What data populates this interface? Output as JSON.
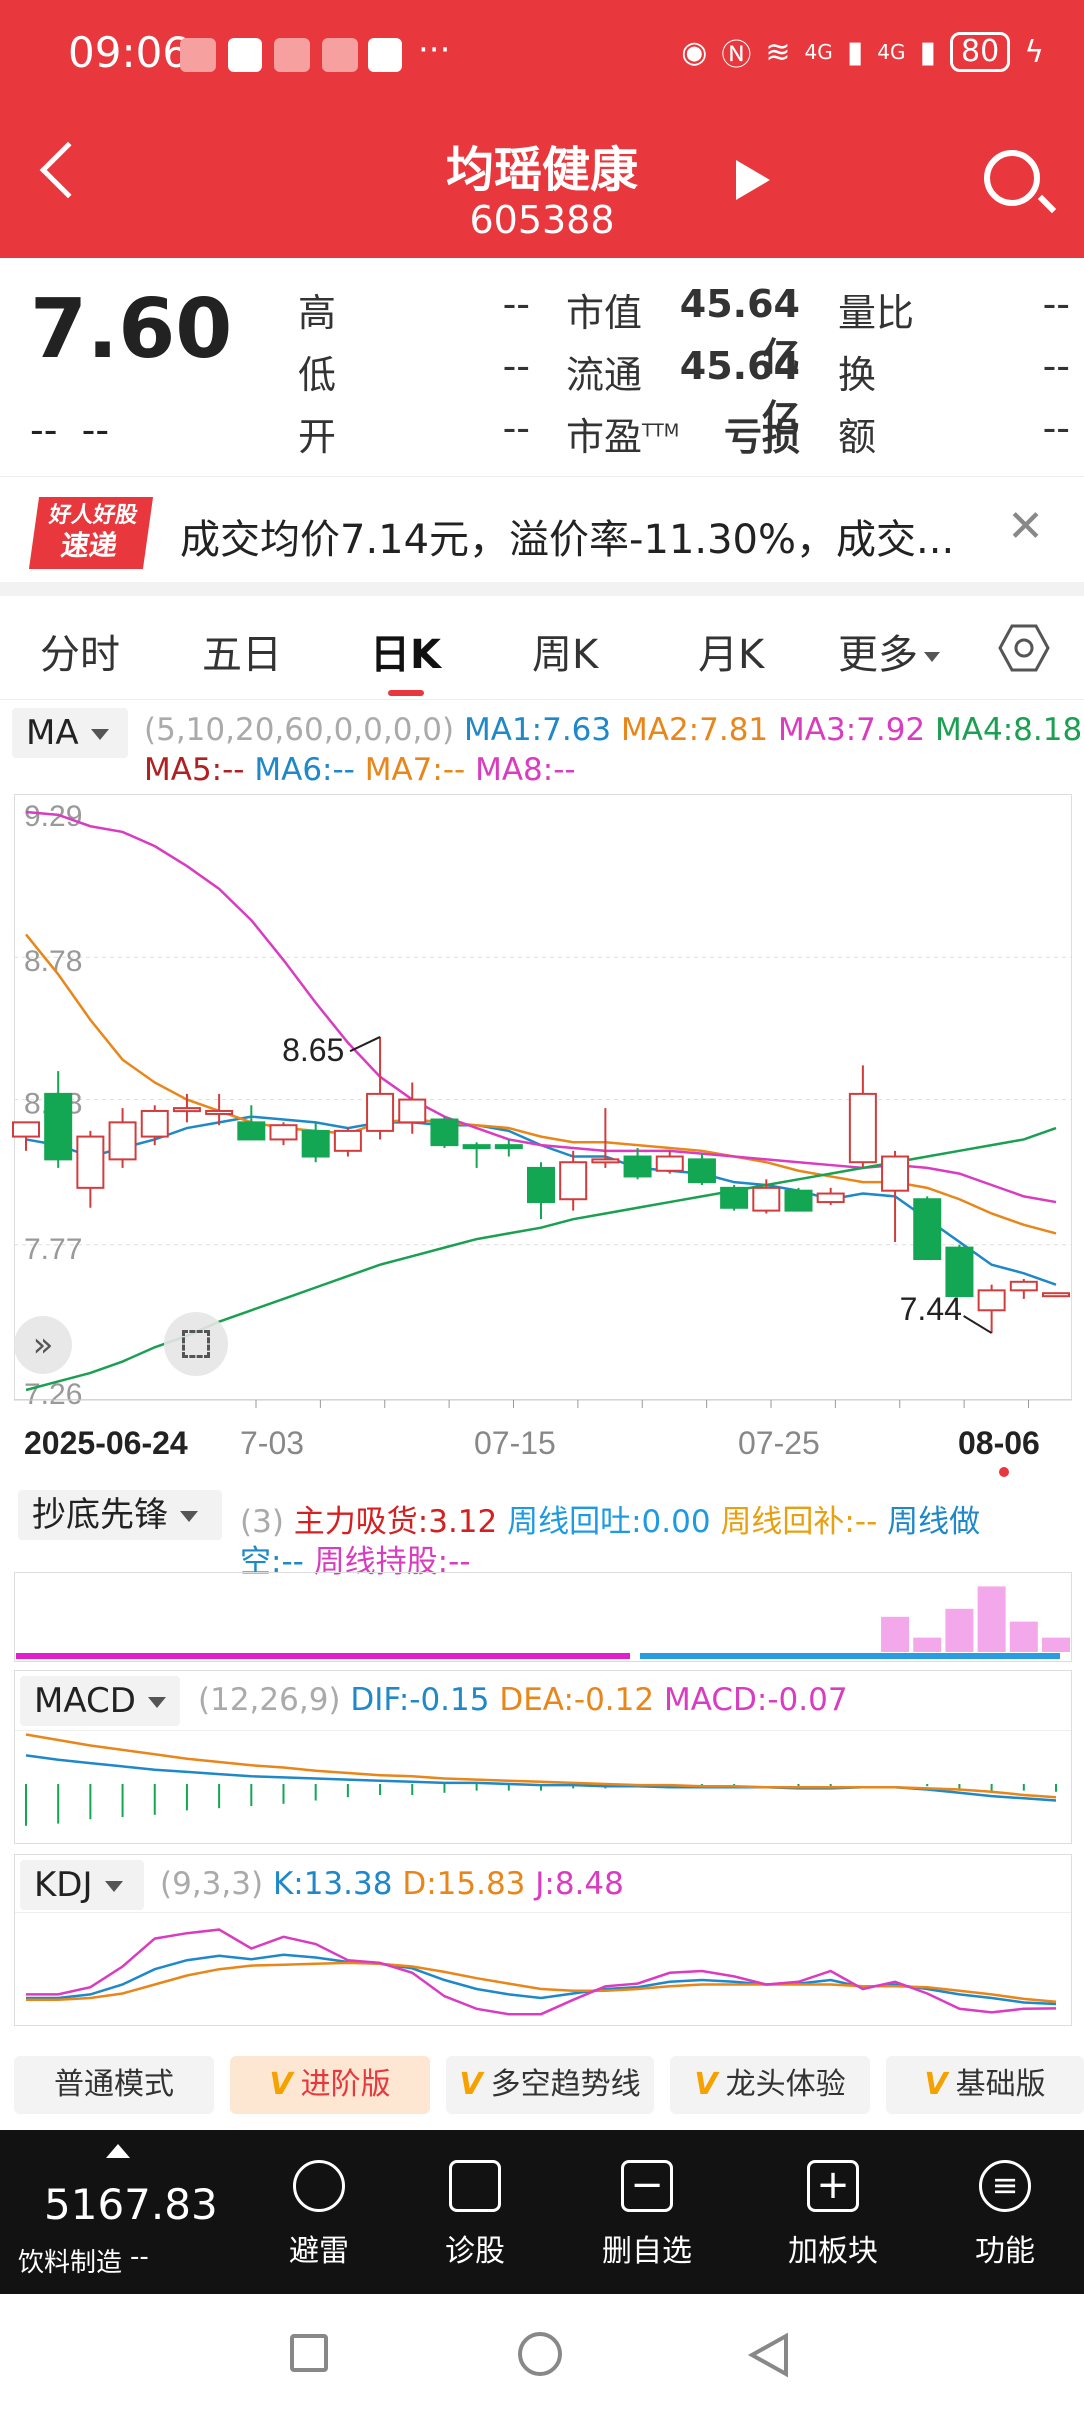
{
  "status": {
    "time": "09:06",
    "battery": "80",
    "signal1": "4G",
    "signal2": "4G"
  },
  "header": {
    "name": "均瑶健康",
    "code": "605388"
  },
  "quote": {
    "price": "7.60",
    "change": "--",
    "change_pct": "--",
    "high_label": "高",
    "high": "--",
    "low_label": "低",
    "low": "--",
    "open_label": "开",
    "open": "--",
    "mcap_label": "市值",
    "mcap": "45.64亿",
    "float_label": "流通",
    "float": "45.64亿",
    "pe_label": "市盈",
    "pe_sup": "TTM",
    "pe": "亏损",
    "vr_label": "量比",
    "vr": "--",
    "turn_label": "换",
    "turn": "--",
    "amt_label": "额",
    "amt": "--"
  },
  "news": {
    "logo_top": "好人好股",
    "logo_bottom": "速递",
    "text": "成交均价7.14元，溢价率-11.30%，成交..."
  },
  "tabs": [
    "分时",
    "五日",
    "日K",
    "周K",
    "月K",
    "更多"
  ],
  "ma": {
    "selector": "MA",
    "params": "(5,10,20,60,0,0,0,0)",
    "ma1": "MA1:7.63",
    "ma2": "MA2:7.81",
    "ma3": "MA3:7.92",
    "ma4": "MA4:8.18",
    "ma5": "MA5:--",
    "ma6": "MA6:--",
    "ma7": "MA7:--",
    "ma8": "MA8:--",
    "colors": {
      "ma1": "#1e88c8",
      "ma2": "#e8861a",
      "ma3": "#d93cc0",
      "ma4": "#1aa050",
      "ma5": "#b02020"
    }
  },
  "chart_data": [
    {
      "type": "candlestick",
      "title": "日K",
      "y_ticks": [
        "9.29",
        "8.78",
        "8.28",
        "7.77",
        "7.26"
      ],
      "ylim": [
        7.26,
        9.29
      ],
      "x_ticks": [
        "2025-06-24",
        "7-03",
        "07-15",
        "07-25",
        "08-06"
      ],
      "annotations": [
        "8.65",
        "7.44"
      ],
      "up_color": "#d23c3c",
      "down_color": "#13a653",
      "candles": [
        {
          "o": 8.15,
          "h": 8.2,
          "l": 8.1,
          "c": 8.2
        },
        {
          "o": 8.3,
          "h": 8.38,
          "l": 8.04,
          "c": 8.07
        },
        {
          "o": 7.97,
          "h": 8.17,
          "l": 7.9,
          "c": 8.15
        },
        {
          "o": 8.07,
          "h": 8.25,
          "l": 8.04,
          "c": 8.2
        },
        {
          "o": 8.15,
          "h": 8.26,
          "l": 8.12,
          "c": 8.24
        },
        {
          "o": 8.24,
          "h": 8.3,
          "l": 8.2,
          "c": 8.25
        },
        {
          "o": 8.23,
          "h": 8.3,
          "l": 8.19,
          "c": 8.24
        },
        {
          "o": 8.2,
          "h": 8.26,
          "l": 8.14,
          "c": 8.14
        },
        {
          "o": 8.14,
          "h": 8.2,
          "l": 8.12,
          "c": 8.19
        },
        {
          "o": 8.17,
          "h": 8.2,
          "l": 8.06,
          "c": 8.08
        },
        {
          "o": 8.1,
          "h": 8.18,
          "l": 8.08,
          "c": 8.17
        },
        {
          "o": 8.17,
          "h": 8.5,
          "l": 8.14,
          "c": 8.3
        },
        {
          "o": 8.2,
          "h": 8.34,
          "l": 8.16,
          "c": 8.28
        },
        {
          "o": 8.21,
          "h": 8.22,
          "l": 8.11,
          "c": 8.12
        },
        {
          "o": 8.12,
          "h": 8.13,
          "l": 8.04,
          "c": 8.11
        },
        {
          "o": 8.12,
          "h": 8.14,
          "l": 8.08,
          "c": 8.11
        },
        {
          "o": 8.04,
          "h": 8.06,
          "l": 7.86,
          "c": 7.92
        },
        {
          "o": 7.93,
          "h": 8.1,
          "l": 7.89,
          "c": 8.06
        },
        {
          "o": 8.06,
          "h": 8.25,
          "l": 8.04,
          "c": 8.07
        },
        {
          "o": 8.08,
          "h": 8.11,
          "l": 8.0,
          "c": 8.01
        },
        {
          "o": 8.03,
          "h": 8.1,
          "l": 8.02,
          "c": 8.08
        },
        {
          "o": 8.07,
          "h": 8.09,
          "l": 7.98,
          "c": 7.99
        },
        {
          "o": 7.97,
          "h": 7.98,
          "l": 7.89,
          "c": 7.9
        },
        {
          "o": 7.89,
          "h": 8.0,
          "l": 7.88,
          "c": 7.97
        },
        {
          "o": 7.96,
          "h": 7.97,
          "l": 7.89,
          "c": 7.89
        },
        {
          "o": 7.92,
          "h": 7.97,
          "l": 7.91,
          "c": 7.95
        },
        {
          "o": 8.06,
          "h": 8.4,
          "l": 8.04,
          "c": 8.3
        },
        {
          "o": 7.96,
          "h": 8.1,
          "l": 7.78,
          "c": 8.08
        },
        {
          "o": 7.93,
          "h": 7.94,
          "l": 7.72,
          "c": 7.72
        },
        {
          "o": 7.76,
          "h": 7.77,
          "l": 7.59,
          "c": 7.59
        },
        {
          "o": 7.54,
          "h": 7.63,
          "l": 7.46,
          "c": 7.61
        },
        {
          "o": 7.61,
          "h": 7.65,
          "l": 7.58,
          "c": 7.64
        },
        {
          "o": 7.6,
          "h": 7.6,
          "l": 7.6,
          "c": 7.6
        }
      ],
      "series": [
        {
          "values": [
            8.14,
            8.12,
            8.08,
            8.11,
            8.14,
            8.18,
            8.2,
            8.22,
            8.21,
            8.2,
            8.18,
            8.2,
            8.2,
            8.19,
            8.19,
            8.17,
            8.12,
            8.08,
            8.08,
            8.04,
            8.03,
            8.02,
            7.99,
            7.98,
            7.96,
            7.93,
            7.95,
            7.94,
            7.86,
            7.78,
            7.7,
            7.67,
            7.63
          ]
        },
        {
          "values": [
            8.86,
            8.72,
            8.56,
            8.42,
            8.34,
            8.28,
            8.24,
            8.2,
            8.18,
            8.17,
            8.16,
            8.2,
            8.21,
            8.2,
            8.19,
            8.18,
            8.15,
            8.13,
            8.13,
            8.12,
            8.11,
            8.1,
            8.08,
            8.06,
            8.03,
            8.01,
            7.99,
            7.99,
            7.97,
            7.93,
            7.88,
            7.84,
            7.81
          ]
        },
        {
          "values": [
            9.29,
            9.28,
            9.24,
            9.22,
            9.17,
            9.1,
            9.02,
            8.91,
            8.77,
            8.62,
            8.48,
            8.36,
            8.28,
            8.22,
            8.18,
            8.14,
            8.12,
            8.11,
            8.1,
            8.1,
            8.1,
            8.09,
            8.08,
            8.07,
            8.06,
            8.05,
            8.04,
            8.05,
            8.04,
            8.02,
            7.98,
            7.94,
            7.92
          ]
        },
        {
          "values": [
            7.26,
            7.29,
            7.32,
            7.36,
            7.41,
            7.45,
            7.5,
            7.54,
            7.58,
            7.62,
            7.66,
            7.7,
            7.73,
            7.76,
            7.79,
            7.81,
            7.83,
            7.86,
            7.88,
            7.9,
            7.92,
            7.94,
            7.96,
            7.98,
            8.0,
            8.02,
            8.04,
            8.06,
            8.08,
            8.1,
            8.12,
            8.14,
            8.18
          ]
        }
      ]
    },
    {
      "type": "bar",
      "title": "抄底先锋",
      "values": [
        0,
        0,
        0,
        0,
        0,
        0,
        0,
        0,
        0,
        0,
        0,
        0,
        0,
        0,
        0,
        0,
        0,
        0,
        0,
        0,
        0,
        0,
        0,
        0,
        0,
        0,
        0,
        2.2,
        0.9,
        2.7,
        4.1,
        1.9,
        0.9
      ]
    },
    {
      "type": "line",
      "title": "MACD",
      "series": [
        {
          "values": [
            0.26,
            0.22,
            0.19,
            0.16,
            0.13,
            0.11,
            0.09,
            0.07,
            0.06,
            0.05,
            0.04,
            0.03,
            0.02,
            0.01,
            0.01,
            0.0,
            -0.01,
            -0.01,
            -0.02,
            -0.02,
            -0.03,
            -0.03,
            -0.03,
            -0.03,
            -0.04,
            -0.04,
            -0.03,
            -0.03,
            -0.05,
            -0.08,
            -0.11,
            -0.13,
            -0.15
          ]
        },
        {
          "values": [
            0.45,
            0.4,
            0.35,
            0.31,
            0.27,
            0.23,
            0.2,
            0.17,
            0.15,
            0.12,
            0.1,
            0.08,
            0.07,
            0.05,
            0.04,
            0.03,
            0.02,
            0.01,
            0.0,
            -0.01,
            -0.01,
            -0.02,
            -0.02,
            -0.03,
            -0.03,
            -0.03,
            -0.03,
            -0.03,
            -0.04,
            -0.05,
            -0.07,
            -0.1,
            -0.12
          ]
        }
      ],
      "bars": [
        -0.38,
        -0.36,
        -0.32,
        -0.3,
        -0.28,
        -0.24,
        -0.22,
        -0.2,
        -0.18,
        -0.15,
        -0.12,
        -0.1,
        -0.1,
        -0.08,
        -0.06,
        -0.06,
        -0.06,
        -0.04,
        -0.04,
        -0.02,
        -0.04,
        -0.02,
        -0.02,
        0.0,
        -0.02,
        -0.02,
        0.0,
        0.0,
        -0.02,
        -0.06,
        -0.08,
        -0.06,
        -0.07
      ]
    },
    {
      "type": "line",
      "title": "KDJ",
      "series": [
        {
          "values": [
            20,
            20,
            24,
            35,
            52,
            62,
            67,
            63,
            68,
            65,
            60,
            58,
            53,
            40,
            30,
            24,
            20,
            25,
            30,
            32,
            38,
            40,
            38,
            35,
            36,
            40,
            32,
            35,
            30,
            24,
            20,
            15,
            13.38
          ]
        },
        {
          "values": [
            18,
            18,
            20,
            25,
            35,
            45,
            52,
            56,
            57,
            58,
            59,
            58,
            55,
            49,
            42,
            36,
            30,
            28,
            28,
            30,
            33,
            35,
            35,
            35,
            35,
            35,
            33,
            33,
            32,
            28,
            24,
            19,
            15.83
          ]
        },
        {
          "values": [
            24,
            24,
            32,
            55,
            86,
            92,
            96,
            75,
            88,
            80,
            62,
            59,
            48,
            22,
            8,
            2,
            2,
            18,
            33,
            36,
            48,
            50,
            44,
            35,
            38,
            50,
            30,
            38,
            25,
            8,
            4,
            8,
            8.48
          ]
        }
      ]
    }
  ],
  "cdxf": {
    "selector": "抄底先锋",
    "param": "(3)",
    "a": "主力吸货:3.12",
    "b": "周线回吐:0.00",
    "c": "周线回补:--",
    "d1": "周线做",
    "d2": "空:--",
    "e": "周线持股:--"
  },
  "macd": {
    "selector": "MACD",
    "params": "(12,26,9)",
    "dif": "DIF:-0.15",
    "dea": "DEA:-0.12",
    "macd": "MACD:-0.07"
  },
  "kdj": {
    "selector": "KDJ",
    "params": "(9,3,3)",
    "k": "K:13.38",
    "d": "D:15.83",
    "j": "J:8.48"
  },
  "modes": [
    "普通模式",
    "进阶版",
    "多空趋势线",
    "龙头体验",
    "基础版"
  ],
  "bottom": {
    "index_value": "5167.83",
    "index_name": "饮料制造",
    "index_change": "--",
    "items": [
      "避雷",
      "诊股",
      "删自选",
      "加板块",
      "功能"
    ]
  }
}
